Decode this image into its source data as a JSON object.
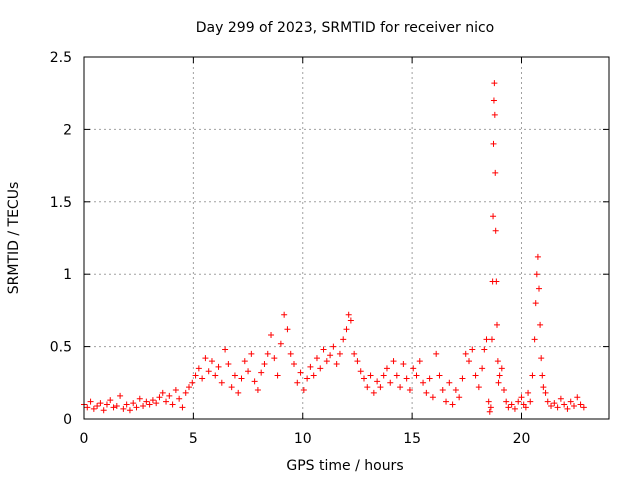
{
  "chart_data": {
    "type": "scatter",
    "title": "Day 299 of 2023, SRMTID for receiver nico",
    "xlabel": "GPS time / hours",
    "ylabel": "SRMTID / TECUs",
    "xlim": [
      0,
      24
    ],
    "ylim": [
      0,
      2.5
    ],
    "xticks": [
      0,
      5,
      10,
      15,
      20
    ],
    "xtick_labels": [
      "0",
      "5",
      "10",
      "15",
      "20"
    ],
    "yticks": [
      0,
      0.5,
      1,
      1.5,
      2,
      2.5
    ],
    "ytick_labels": [
      "0",
      "0.5",
      "1",
      "1.5",
      "2",
      "2.5"
    ],
    "grid": true,
    "marker": "plus",
    "series": [
      {
        "name": "SRMTID",
        "color": "#ff0000",
        "points": [
          [
            0.0,
            0.1
          ],
          [
            0.15,
            0.08
          ],
          [
            0.3,
            0.12
          ],
          [
            0.45,
            0.07
          ],
          [
            0.6,
            0.09
          ],
          [
            0.75,
            0.11
          ],
          [
            0.9,
            0.06
          ],
          [
            1.05,
            0.1
          ],
          [
            1.2,
            0.13
          ],
          [
            1.35,
            0.08
          ],
          [
            1.5,
            0.09
          ],
          [
            1.65,
            0.16
          ],
          [
            1.8,
            0.07
          ],
          [
            1.95,
            0.1
          ],
          [
            2.1,
            0.06
          ],
          [
            2.25,
            0.11
          ],
          [
            2.4,
            0.08
          ],
          [
            2.55,
            0.14
          ],
          [
            2.7,
            0.09
          ],
          [
            2.85,
            0.12
          ],
          [
            3.0,
            0.1
          ],
          [
            3.15,
            0.13
          ],
          [
            3.3,
            0.11
          ],
          [
            3.45,
            0.15
          ],
          [
            3.6,
            0.18
          ],
          [
            3.75,
            0.12
          ],
          [
            3.9,
            0.16
          ],
          [
            4.05,
            0.1
          ],
          [
            4.2,
            0.2
          ],
          [
            4.35,
            0.14
          ],
          [
            4.5,
            0.08
          ],
          [
            4.65,
            0.18
          ],
          [
            4.8,
            0.22
          ],
          [
            4.95,
            0.25
          ],
          [
            5.1,
            0.3
          ],
          [
            5.25,
            0.35
          ],
          [
            5.4,
            0.28
          ],
          [
            5.55,
            0.42
          ],
          [
            5.7,
            0.33
          ],
          [
            5.85,
            0.4
          ],
          [
            6.0,
            0.3
          ],
          [
            6.15,
            0.36
          ],
          [
            6.3,
            0.25
          ],
          [
            6.45,
            0.48
          ],
          [
            6.6,
            0.38
          ],
          [
            6.75,
            0.22
          ],
          [
            6.9,
            0.3
          ],
          [
            7.05,
            0.18
          ],
          [
            7.2,
            0.28
          ],
          [
            7.35,
            0.4
          ],
          [
            7.5,
            0.33
          ],
          [
            7.65,
            0.45
          ],
          [
            7.8,
            0.26
          ],
          [
            7.95,
            0.2
          ],
          [
            8.1,
            0.32
          ],
          [
            8.25,
            0.38
          ],
          [
            8.4,
            0.45
          ],
          [
            8.55,
            0.58
          ],
          [
            8.7,
            0.42
          ],
          [
            8.85,
            0.3
          ],
          [
            9.0,
            0.52
          ],
          [
            9.15,
            0.72
          ],
          [
            9.3,
            0.62
          ],
          [
            9.45,
            0.45
          ],
          [
            9.6,
            0.38
          ],
          [
            9.75,
            0.25
          ],
          [
            9.9,
            0.32
          ],
          [
            10.05,
            0.2
          ],
          [
            10.2,
            0.28
          ],
          [
            10.35,
            0.36
          ],
          [
            10.5,
            0.3
          ],
          [
            10.65,
            0.42
          ],
          [
            10.8,
            0.35
          ],
          [
            10.95,
            0.48
          ],
          [
            11.1,
            0.4
          ],
          [
            11.25,
            0.44
          ],
          [
            11.4,
            0.5
          ],
          [
            11.55,
            0.38
          ],
          [
            11.7,
            0.45
          ],
          [
            11.85,
            0.55
          ],
          [
            12.0,
            0.62
          ],
          [
            12.1,
            0.72
          ],
          [
            12.2,
            0.68
          ],
          [
            12.35,
            0.45
          ],
          [
            12.5,
            0.4
          ],
          [
            12.65,
            0.33
          ],
          [
            12.8,
            0.28
          ],
          [
            12.95,
            0.22
          ],
          [
            13.1,
            0.3
          ],
          [
            13.25,
            0.18
          ],
          [
            13.4,
            0.26
          ],
          [
            13.55,
            0.22
          ],
          [
            13.7,
            0.3
          ],
          [
            13.85,
            0.35
          ],
          [
            14.0,
            0.25
          ],
          [
            14.15,
            0.4
          ],
          [
            14.3,
            0.3
          ],
          [
            14.45,
            0.22
          ],
          [
            14.6,
            0.38
          ],
          [
            14.75,
            0.28
          ],
          [
            14.9,
            0.2
          ],
          [
            15.05,
            0.35
          ],
          [
            15.2,
            0.3
          ],
          [
            15.35,
            0.4
          ],
          [
            15.5,
            0.25
          ],
          [
            15.65,
            0.18
          ],
          [
            15.8,
            0.28
          ],
          [
            15.95,
            0.15
          ],
          [
            16.1,
            0.45
          ],
          [
            16.25,
            0.3
          ],
          [
            16.4,
            0.2
          ],
          [
            16.55,
            0.12
          ],
          [
            16.7,
            0.25
          ],
          [
            16.85,
            0.1
          ],
          [
            17.0,
            0.2
          ],
          [
            17.15,
            0.15
          ],
          [
            17.3,
            0.28
          ],
          [
            17.45,
            0.45
          ],
          [
            17.6,
            0.4
          ],
          [
            17.75,
            0.48
          ],
          [
            17.9,
            0.3
          ],
          [
            18.05,
            0.22
          ],
          [
            18.2,
            0.35
          ],
          [
            18.3,
            0.48
          ],
          [
            18.4,
            0.55
          ],
          [
            18.5,
            0.12
          ],
          [
            18.55,
            0.05
          ],
          [
            18.6,
            0.08
          ],
          [
            18.65,
            0.55
          ],
          [
            18.68,
            0.95
          ],
          [
            18.7,
            1.4
          ],
          [
            18.72,
            1.9
          ],
          [
            18.74,
            2.2
          ],
          [
            18.76,
            2.32
          ],
          [
            18.78,
            2.1
          ],
          [
            18.8,
            1.7
          ],
          [
            18.82,
            1.3
          ],
          [
            18.85,
            0.95
          ],
          [
            18.88,
            0.65
          ],
          [
            18.92,
            0.4
          ],
          [
            18.95,
            0.25
          ],
          [
            19.0,
            0.3
          ],
          [
            19.1,
            0.35
          ],
          [
            19.2,
            0.2
          ],
          [
            19.3,
            0.12
          ],
          [
            19.4,
            0.08
          ],
          [
            19.55,
            0.1
          ],
          [
            19.7,
            0.07
          ],
          [
            19.85,
            0.12
          ],
          [
            20.0,
            0.15
          ],
          [
            20.1,
            0.1
          ],
          [
            20.2,
            0.08
          ],
          [
            20.3,
            0.18
          ],
          [
            20.4,
            0.12
          ],
          [
            20.5,
            0.3
          ],
          [
            20.6,
            0.55
          ],
          [
            20.65,
            0.8
          ],
          [
            20.7,
            1.0
          ],
          [
            20.75,
            1.12
          ],
          [
            20.8,
            0.9
          ],
          [
            20.85,
            0.65
          ],
          [
            20.9,
            0.42
          ],
          [
            20.95,
            0.3
          ],
          [
            21.0,
            0.22
          ],
          [
            21.1,
            0.18
          ],
          [
            21.2,
            0.12
          ],
          [
            21.35,
            0.09
          ],
          [
            21.5,
            0.11
          ],
          [
            21.65,
            0.08
          ],
          [
            21.8,
            0.14
          ],
          [
            21.95,
            0.1
          ],
          [
            22.1,
            0.07
          ],
          [
            22.25,
            0.12
          ],
          [
            22.4,
            0.09
          ],
          [
            22.55,
            0.15
          ],
          [
            22.7,
            0.1
          ],
          [
            22.85,
            0.08
          ]
        ]
      }
    ]
  }
}
